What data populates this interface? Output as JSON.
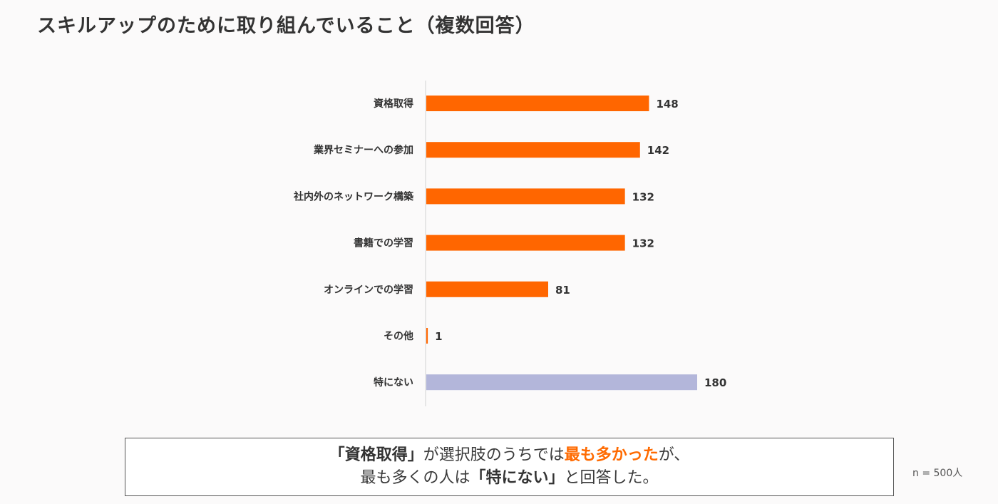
{
  "title": "スキルアップのために取り組んでいること（複数回答）",
  "chart_data": {
    "type": "bar",
    "orientation": "horizontal",
    "categories": [
      "資格取得",
      "業界セミナーへの参加",
      "社内外のネットワーク構築",
      "書籍での学習",
      "オンラインでの学習",
      "その他",
      "特にない"
    ],
    "values": [
      148,
      142,
      132,
      132,
      81,
      1,
      180
    ],
    "colors": [
      "#ff6600",
      "#ff6600",
      "#ff6600",
      "#ff6600",
      "#ff6600",
      "#ff6600",
      "#b3b6da"
    ],
    "xlim": [
      0,
      180
    ],
    "grid": false,
    "legend": false
  },
  "callout": {
    "l1_q1": "「",
    "l1_b1": "資格取得",
    "l1_q2": "」",
    "l1_t1": "が選択肢のうちでは",
    "l1_accent": "最も多かった",
    "l1_t2": "が、",
    "l2_t1": "最も多くの人は",
    "l2_q1": "「",
    "l2_b1": "特にない",
    "l2_q2": "」",
    "l2_t2": "と回答した。"
  },
  "note": "n = 500人"
}
